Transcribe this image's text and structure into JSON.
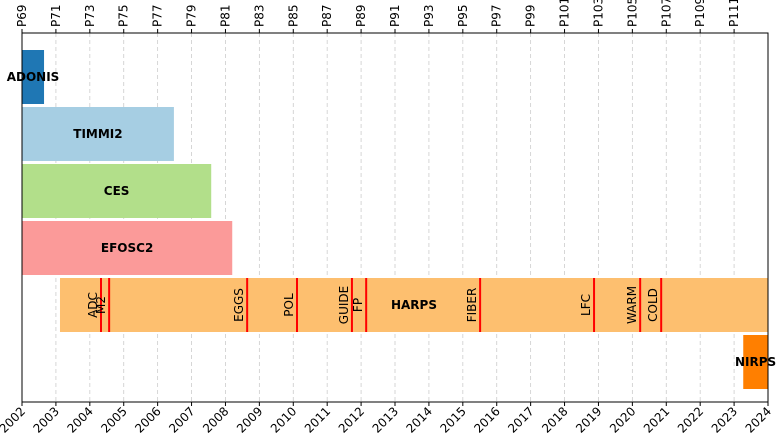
{
  "chart_data": {
    "type": "timeline",
    "categories": [
      "ADONIS",
      "TIMMI2",
      "CES",
      "EFOSC2",
      "HARPS",
      "NIRPS"
    ],
    "start": [
      2002,
      2002,
      2002,
      2002,
      2003.12,
      2023.27
    ],
    "end": [
      2002.65,
      2006.48,
      2007.58,
      2008.2,
      2024,
      2024
    ],
    "colors": [
      "#1f77b4",
      "#a6cee3",
      "#b2df8a",
      "#fb9a99",
      "#fdbf6f",
      "#ff7f00"
    ],
    "events": [
      {
        "label": "ADC",
        "x": 2004.33
      },
      {
        "label": "M2",
        "x": 2004.57
      },
      {
        "label": "EGGS",
        "x": 2008.64
      },
      {
        "label": "POL",
        "x": 2010.11
      },
      {
        "label": "GUIDE",
        "x": 2011.73
      },
      {
        "label": "FP",
        "x": 2012.15
      },
      {
        "label": "FIBER",
        "x": 2015.51
      },
      {
        "label": "LFC",
        "x": 2018.87
      },
      {
        "label": "WARM",
        "x": 2020.23
      },
      {
        "label": "COLD",
        "x": 2020.85
      }
    ],
    "event_color": "#ff0000",
    "xlim": [
      2002,
      2024
    ],
    "xticks": [
      2002,
      2003,
      2004,
      2005,
      2006,
      2007,
      2008,
      2009,
      2010,
      2011,
      2012,
      2013,
      2014,
      2015,
      2016,
      2017,
      2018,
      2019,
      2020,
      2021,
      2022,
      2023,
      2024
    ],
    "x2ticks": [
      {
        "value": 2002,
        "label": "P69"
      },
      {
        "value": 2003,
        "label": "P71"
      },
      {
        "value": 2004,
        "label": "P73"
      },
      {
        "value": 2005,
        "label": "P75"
      },
      {
        "value": 2006,
        "label": "P77"
      },
      {
        "value": 2007,
        "label": "P79"
      },
      {
        "value": 2008,
        "label": "P81"
      },
      {
        "value": 2009,
        "label": "P83"
      },
      {
        "value": 2010,
        "label": "P85"
      },
      {
        "value": 2011,
        "label": "P87"
      },
      {
        "value": 2012,
        "label": "P89"
      },
      {
        "value": 2013,
        "label": "P91"
      },
      {
        "value": 2014,
        "label": "P93"
      },
      {
        "value": 2015,
        "label": "P95"
      },
      {
        "value": 2016,
        "label": "P97"
      },
      {
        "value": 2017,
        "label": "P99"
      },
      {
        "value": 2018,
        "label": "P101"
      },
      {
        "value": 2019,
        "label": "P103"
      },
      {
        "value": 2020,
        "label": "P105"
      },
      {
        "value": 2021,
        "label": "P107"
      },
      {
        "value": 2022,
        "label": "P109"
      },
      {
        "value": 2023,
        "label": "P111"
      }
    ],
    "grid": true
  }
}
